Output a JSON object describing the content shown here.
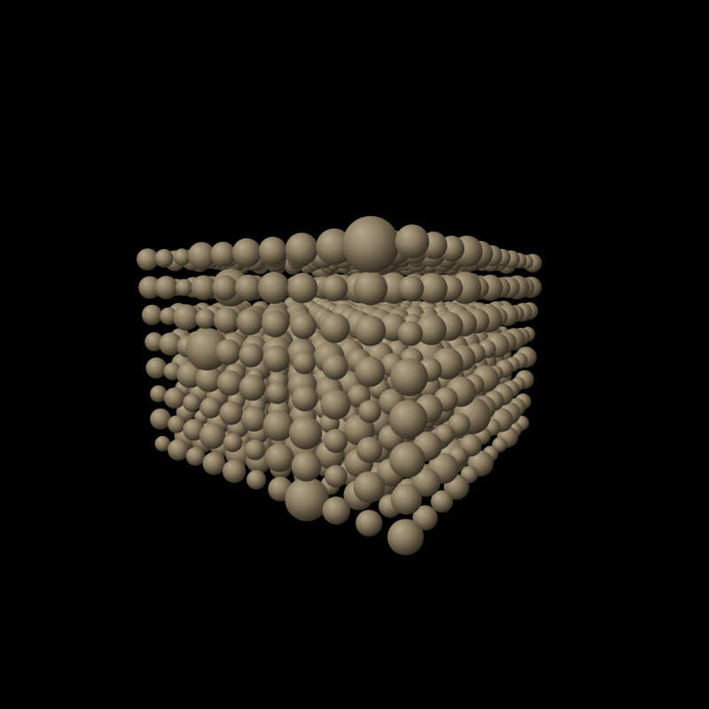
{
  "scene": {
    "subject": "sphere-lattice",
    "background_color": "#000000",
    "sphere_base_color": "#8a7c62",
    "sphere_highlight_color": "#b3a88c",
    "sphere_shadow_color": "#2e281d",
    "grid": {
      "columns": 11,
      "rows": 8,
      "depth_layers": 11
    }
  }
}
